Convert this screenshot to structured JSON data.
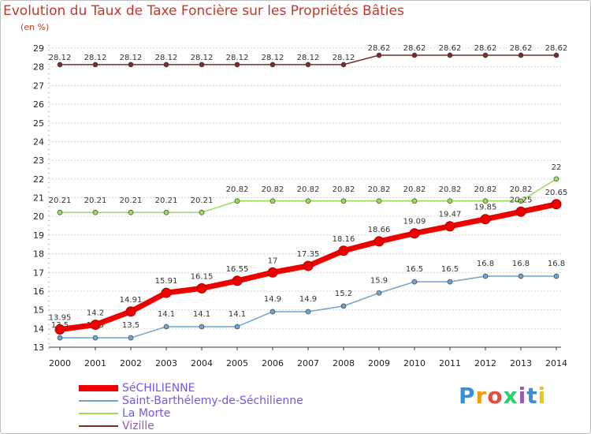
{
  "chart_data": {
    "type": "line",
    "title": "Evolution du Taux de Taxe Foncière sur les Propriétés Bâties",
    "ylabel": "(en %)",
    "xlabel": "",
    "ylim": [
      13,
      29
    ],
    "yticks": [
      13,
      14,
      15,
      16,
      17,
      18,
      19,
      20,
      21,
      22,
      23,
      24,
      25,
      26,
      27,
      28,
      29
    ],
    "x": [
      "2000",
      "2001",
      "2002",
      "2003",
      "2004",
      "2005",
      "2006",
      "2007",
      "2008",
      "2009",
      "2010",
      "2011",
      "2012",
      "2013",
      "2014"
    ],
    "series": [
      {
        "name": "SéCHILIENNE",
        "color": "#ee0000",
        "values": [
          13.95,
          14.2,
          14.91,
          15.91,
          16.15,
          16.55,
          17,
          17.35,
          18.16,
          18.66,
          19.09,
          19.47,
          19.85,
          20.25,
          20.65
        ],
        "labels": [
          "13.95",
          "14.2",
          "14.91",
          "15.91",
          "16.15",
          "16.55",
          "17",
          "17.35",
          "18.16",
          "18.66",
          "19.09",
          "19.47",
          "19.85",
          "20.25",
          "20.65"
        ]
      },
      {
        "name": "Saint-Barthélemy-de-Séchilienne",
        "color": "#6fa3d0",
        "values": [
          13.5,
          13.5,
          13.5,
          14.1,
          14.1,
          14.1,
          14.9,
          14.9,
          15.2,
          15.9,
          16.5,
          16.5,
          16.8,
          16.8,
          16.8
        ],
        "labels": [
          "13.5",
          "13.5",
          "13.5",
          "14.1",
          "14.1",
          "14.1",
          "14.9",
          "14.9",
          "15.2",
          "15.9",
          "16.5",
          "16.5",
          "16.8",
          "16.8",
          "16.8"
        ]
      },
      {
        "name": "La Morte",
        "color": "#99dd55",
        "values": [
          20.21,
          20.21,
          20.21,
          20.21,
          20.21,
          20.82,
          20.82,
          20.82,
          20.82,
          20.82,
          20.82,
          20.82,
          20.82,
          20.82,
          22
        ],
        "labels": [
          "20.21",
          "20.21",
          "20.21",
          "20.21",
          "20.21",
          "20.82",
          "20.82",
          "20.82",
          "20.82",
          "20.82",
          "20.82",
          "20.82",
          "20.82",
          "20.82",
          "22"
        ]
      },
      {
        "name": "Vizille",
        "color": "#7a2a2a",
        "values": [
          28.12,
          28.12,
          28.12,
          28.12,
          28.12,
          28.12,
          28.12,
          28.12,
          28.12,
          28.62,
          28.62,
          28.62,
          28.62,
          28.62,
          28.62
        ],
        "labels": [
          "28.12",
          "28.12",
          "28.12",
          "28.12",
          "28.12",
          "28.12",
          "28.12",
          "28.12",
          "28.12",
          "28.62",
          "28.62",
          "28.62",
          "28.62",
          "28.62",
          "28.62"
        ]
      }
    ],
    "legend_position": "bottom-left"
  },
  "logo": {
    "letters": [
      "P",
      "r",
      "o",
      "x",
      "i",
      "t",
      "i"
    ],
    "colors": [
      "#3a8fd8",
      "#f39c12",
      "#e74c3c",
      "#2ecc71",
      "#9b59b6",
      "#3a8fd8",
      "#f1c40f"
    ]
  }
}
